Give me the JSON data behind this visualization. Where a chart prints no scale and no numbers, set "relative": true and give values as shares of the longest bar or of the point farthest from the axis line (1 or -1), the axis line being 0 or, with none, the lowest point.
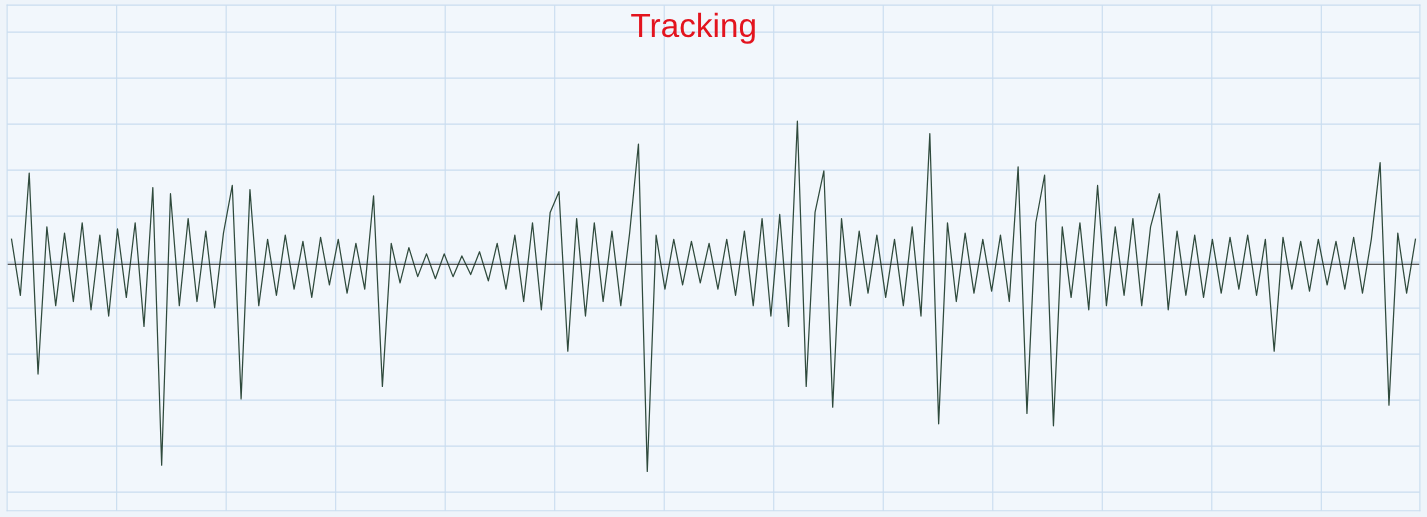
{
  "chart_data": {
    "type": "line",
    "title": "Tracking",
    "relative": true,
    "grid": true,
    "marker": "none",
    "line_style": "solid",
    "categories": [
      null,
      null,
      null,
      null,
      null,
      null,
      null,
      null,
      null,
      null,
      null,
      null,
      null,
      null,
      null,
      null,
      null,
      null,
      null,
      null,
      null,
      null,
      null,
      null,
      null,
      null,
      null,
      null,
      null,
      null,
      null,
      null,
      null,
      null,
      null,
      null,
      null,
      null,
      null,
      null,
      null,
      null,
      null,
      null,
      null,
      null,
      null,
      null,
      null,
      null,
      null,
      null,
      null,
      null,
      null,
      null,
      null,
      null,
      null,
      null,
      null,
      null,
      null,
      null,
      null,
      null,
      null,
      null,
      null,
      null,
      null,
      null,
      null,
      null,
      null,
      null,
      null,
      null,
      null,
      null,
      null,
      null,
      null,
      null,
      null,
      null,
      null,
      null,
      null,
      null,
      null,
      null,
      null,
      null,
      null,
      null,
      null,
      null,
      null,
      null,
      null,
      null,
      null,
      null,
      null,
      null,
      null,
      null,
      null,
      null,
      null,
      null,
      null,
      null,
      null,
      null,
      null,
      null,
      null,
      null,
      null,
      null,
      null,
      null,
      null,
      null,
      null,
      null,
      null,
      null,
      null,
      null,
      null,
      null,
      null,
      null,
      null,
      null,
      null,
      null,
      null,
      null,
      null,
      null,
      null,
      null,
      null,
      null,
      null,
      null,
      null,
      null,
      null,
      null,
      null,
      null,
      null,
      null,
      null,
      null
    ],
    "series": [
      {
        "color": "#2f4a3c",
        "values": [
          0.12,
          -0.15,
          0.44,
          -0.53,
          0.18,
          -0.2,
          0.15,
          -0.18,
          0.2,
          -0.22,
          0.14,
          -0.25,
          0.17,
          -0.16,
          0.2,
          -0.3,
          0.37,
          -0.97,
          0.34,
          -0.2,
          0.22,
          -0.18,
          0.16,
          -0.21,
          0.15,
          0.38,
          -0.65,
          0.36,
          -0.2,
          0.12,
          -0.15,
          0.14,
          -0.12,
          0.11,
          -0.16,
          0.13,
          -0.1,
          0.12,
          -0.14,
          0.1,
          -0.12,
          0.33,
          -0.59,
          0.1,
          -0.09,
          0.08,
          -0.06,
          0.05,
          -0.07,
          0.05,
          -0.06,
          0.04,
          -0.05,
          0.06,
          -0.08,
          0.1,
          -0.12,
          0.14,
          -0.18,
          0.2,
          -0.22,
          0.25,
          0.35,
          -0.42,
          0.22,
          -0.25,
          0.2,
          -0.18,
          0.16,
          -0.2,
          0.15,
          0.58,
          -1.0,
          0.14,
          -0.12,
          0.12,
          -0.1,
          0.11,
          -0.09,
          0.1,
          -0.12,
          0.12,
          -0.15,
          0.16,
          -0.2,
          0.22,
          -0.25,
          0.24,
          -0.3,
          0.69,
          -0.59,
          0.25,
          0.45,
          -0.69,
          0.22,
          -0.2,
          0.16,
          -0.14,
          0.14,
          -0.16,
          0.12,
          -0.2,
          0.18,
          -0.25,
          0.63,
          -0.77,
          0.2,
          -0.18,
          0.15,
          -0.14,
          0.12,
          -0.13,
          0.14,
          -0.18,
          0.47,
          -0.72,
          0.2,
          0.43,
          -0.78,
          0.18,
          -0.16,
          0.2,
          -0.22,
          0.38,
          -0.2,
          0.18,
          -0.15,
          0.22,
          -0.2,
          0.18,
          0.34,
          -0.22,
          0.16,
          -0.15,
          0.14,
          -0.16,
          0.12,
          -0.14,
          0.13,
          -0.12,
          0.14,
          -0.15,
          0.12,
          -0.42,
          0.13,
          -0.12,
          0.11,
          -0.13,
          0.12,
          -0.1,
          0.11,
          -0.12,
          0.13,
          -0.14,
          0.12,
          0.49,
          -0.68,
          0.15,
          -0.14,
          0.12
        ]
      }
    ]
  }
}
